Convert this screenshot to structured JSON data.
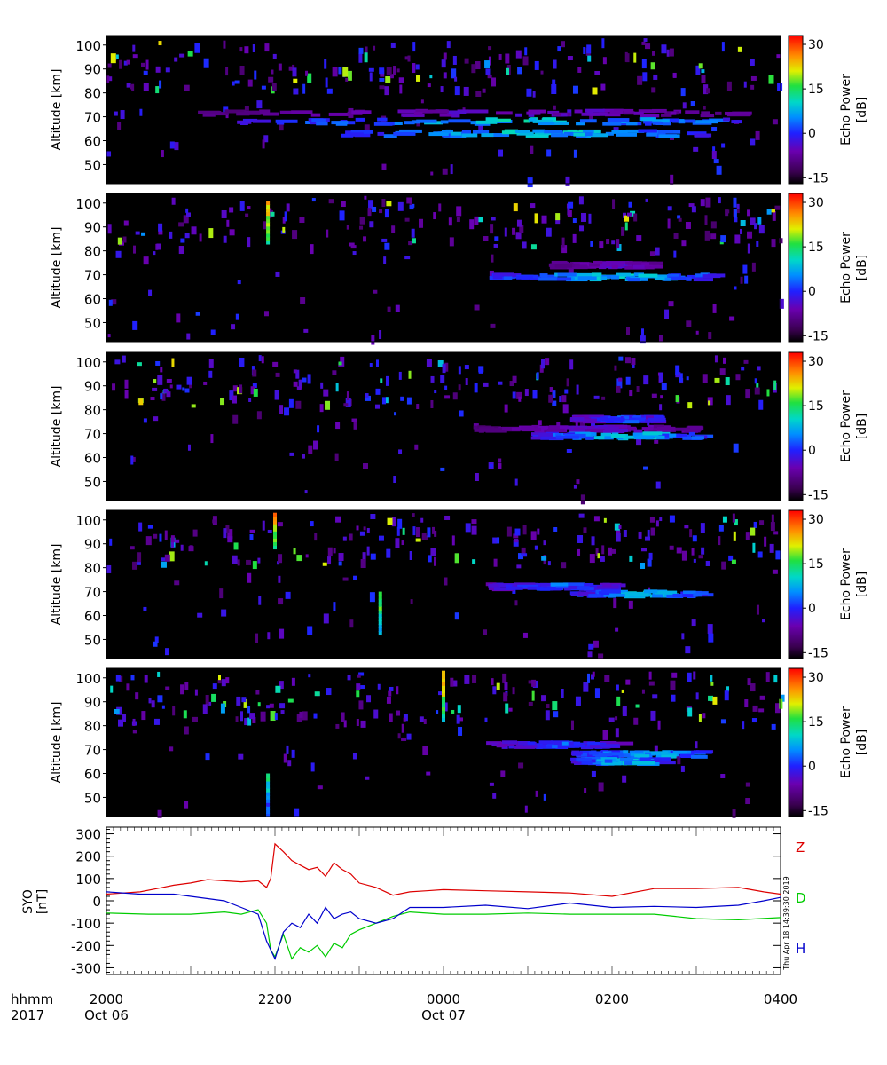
{
  "chart_data": [
    {
      "type": "heatmap",
      "panel": 1,
      "ylabel": "Altitude [km]",
      "ylim": [
        42,
        104
      ],
      "yticks": [
        50,
        60,
        70,
        80,
        90,
        100
      ],
      "xlim_hours": [
        20,
        28
      ],
      "colorbar": {
        "label": "Echo Power [dB]",
        "range": [
          -17,
          33
        ],
        "ticks": [
          30,
          15,
          0,
          -15
        ]
      },
      "features": [
        {
          "kind": "layer",
          "altitude_km": 71.5,
          "from": "2105",
          "to": "0330",
          "level": "weak"
        },
        {
          "kind": "layer",
          "altitude_km": 68,
          "from": "2130",
          "to": "0330",
          "level": "strong"
        },
        {
          "kind": "layer",
          "altitude_km": 63,
          "from": "2245",
          "to": "0300",
          "level": "strong"
        }
      ]
    },
    {
      "type": "heatmap",
      "panel": 2,
      "ylabel": "Altitude [km]",
      "ylim": [
        42,
        104
      ],
      "yticks": [
        50,
        60,
        70,
        80,
        90,
        100
      ],
      "xlim_hours": [
        20,
        28
      ],
      "colorbar": {
        "label": "Echo Power [dB]",
        "range": [
          -17,
          33
        ],
        "ticks": [
          30,
          15,
          0,
          -15
        ]
      },
      "features": [
        {
          "kind": "layer",
          "altitude_km": 74,
          "from": "0115",
          "to": "0230",
          "level": "weak"
        },
        {
          "kind": "layer",
          "altitude_km": 69,
          "from": "0030",
          "to": "0310",
          "level": "strong"
        },
        {
          "kind": "column",
          "time": "2155",
          "from_km": 83,
          "to_km": 101,
          "level": "strong"
        }
      ]
    },
    {
      "type": "heatmap",
      "panel": 3,
      "ylabel": "Altitude [km]",
      "ylim": [
        42,
        104
      ],
      "yticks": [
        50,
        60,
        70,
        80,
        90,
        100
      ],
      "xlim_hours": [
        20,
        28
      ],
      "colorbar": {
        "label": "Echo Power [dB]",
        "range": [
          -17,
          33
        ],
        "ticks": [
          30,
          15,
          0,
          -15
        ]
      },
      "features": [
        {
          "kind": "layer",
          "altitude_km": 72,
          "from": "0020",
          "to": "0300",
          "level": "weak"
        },
        {
          "kind": "layer",
          "altitude_km": 69,
          "from": "0100",
          "to": "0300",
          "level": "strong"
        },
        {
          "kind": "layer",
          "altitude_km": 76,
          "from": "0130",
          "to": "0230",
          "level": "medium"
        }
      ]
    },
    {
      "type": "heatmap",
      "panel": 4,
      "ylabel": "Altitude [km]",
      "ylim": [
        42,
        104
      ],
      "yticks": [
        50,
        60,
        70,
        80,
        90,
        100
      ],
      "xlim_hours": [
        20,
        28
      ],
      "colorbar": {
        "label": "Echo Power [dB]",
        "range": [
          -17,
          33
        ],
        "ticks": [
          30,
          15,
          0,
          -15
        ]
      },
      "features": [
        {
          "kind": "layer",
          "altitude_km": 72,
          "from": "0030",
          "to": "0200",
          "level": "medium"
        },
        {
          "kind": "layer",
          "altitude_km": 69,
          "from": "0130",
          "to": "0300",
          "level": "strong"
        },
        {
          "kind": "column",
          "time": "2200",
          "from_km": 88,
          "to_km": 102,
          "level": "strong"
        },
        {
          "kind": "column",
          "time": "2315",
          "from_km": 52,
          "to_km": 70,
          "level": "medium"
        }
      ]
    },
    {
      "type": "heatmap",
      "panel": 5,
      "ylabel": "Altitude [km]",
      "ylim": [
        42,
        104
      ],
      "yticks": [
        50,
        60,
        70,
        80,
        90,
        100
      ],
      "xlim_hours": [
        20,
        28
      ],
      "colorbar": {
        "label": "Echo Power [dB]",
        "range": [
          -17,
          33
        ],
        "ticks": [
          30,
          15,
          0,
          -15
        ]
      },
      "features": [
        {
          "kind": "layer",
          "altitude_km": 72,
          "from": "0030",
          "to": "0200",
          "level": "medium"
        },
        {
          "kind": "layer",
          "altitude_km": 68,
          "from": "0130",
          "to": "0300",
          "level": "strong"
        },
        {
          "kind": "layer",
          "altitude_km": 65,
          "from": "0130",
          "to": "0230",
          "level": "strong"
        },
        {
          "kind": "column",
          "time": "0000",
          "from_km": 82,
          "to_km": 102,
          "level": "strong"
        },
        {
          "kind": "column",
          "time": "2155",
          "from_km": 42,
          "to_km": 60,
          "level": "weak"
        }
      ]
    },
    {
      "type": "line",
      "panel": 6,
      "ylabel": "SYO\n[nT]",
      "ylim": [
        -330,
        330
      ],
      "yticks": [
        300,
        200,
        100,
        0,
        -100,
        -200,
        -300
      ],
      "xlim_hours": [
        20,
        28
      ],
      "series": [
        {
          "name": "Z",
          "color": "#dd0000",
          "x": [
            20.0,
            20.2,
            20.4,
            20.6,
            20.8,
            21.0,
            21.2,
            21.4,
            21.6,
            21.8,
            21.9,
            21.95,
            22.0,
            22.1,
            22.2,
            22.3,
            22.4,
            22.5,
            22.6,
            22.7,
            22.8,
            22.9,
            23.0,
            23.2,
            23.4,
            23.6,
            23.8,
            24.0,
            24.5,
            25.0,
            25.5,
            26.0,
            26.5,
            27.0,
            27.5,
            27.8,
            28.0
          ],
          "y": [
            30,
            35,
            40,
            55,
            70,
            80,
            95,
            90,
            85,
            90,
            60,
            100,
            255,
            220,
            180,
            160,
            140,
            150,
            110,
            170,
            140,
            120,
            80,
            60,
            25,
            40,
            45,
            50,
            45,
            40,
            35,
            20,
            55,
            55,
            60,
            40,
            30
          ]
        },
        {
          "name": "D",
          "color": "#00cc00",
          "x": [
            20.0,
            20.5,
            21.0,
            21.4,
            21.6,
            21.8,
            21.9,
            21.95,
            22.0,
            22.1,
            22.2,
            22.3,
            22.4,
            22.5,
            22.6,
            22.7,
            22.8,
            22.9,
            23.0,
            23.2,
            23.4,
            23.6,
            24.0,
            24.5,
            25.0,
            25.5,
            26.0,
            26.5,
            27.0,
            27.5,
            28.0
          ],
          "y": [
            -55,
            -60,
            -60,
            -50,
            -60,
            -40,
            -100,
            -220,
            -250,
            -150,
            -260,
            -210,
            -230,
            -200,
            -250,
            -190,
            -210,
            -150,
            -130,
            -100,
            -70,
            -50,
            -60,
            -60,
            -55,
            -60,
            -60,
            -60,
            -80,
            -85,
            -75
          ]
        },
        {
          "name": "H",
          "color": "#0000cc",
          "x": [
            20.0,
            20.4,
            20.8,
            21.0,
            21.4,
            21.6,
            21.8,
            21.9,
            22.0,
            22.1,
            22.2,
            22.3,
            22.4,
            22.5,
            22.6,
            22.7,
            22.8,
            22.9,
            23.0,
            23.2,
            23.4,
            23.6,
            24.0,
            24.5,
            25.0,
            25.5,
            26.0,
            26.5,
            27.0,
            27.5,
            27.8,
            28.0
          ],
          "y": [
            40,
            30,
            30,
            20,
            0,
            -30,
            -60,
            -180,
            -260,
            -140,
            -100,
            -120,
            -60,
            -100,
            -30,
            -80,
            -60,
            -50,
            -80,
            -100,
            -80,
            -30,
            -30,
            -20,
            -35,
            -10,
            -30,
            -25,
            -30,
            -20,
            0,
            15
          ]
        }
      ]
    }
  ],
  "x_axis": {
    "row_label": "hhmm",
    "year": "2017",
    "ticks": [
      {
        "hour": 20,
        "label": "2000",
        "date": "Oct 06"
      },
      {
        "hour": 22,
        "label": "2200",
        "date": ""
      },
      {
        "hour": 24,
        "label": "0000",
        "date": "Oct 07"
      },
      {
        "hour": 26,
        "label": "0200",
        "date": ""
      },
      {
        "hour": 28,
        "label": "0400",
        "date": ""
      }
    ]
  },
  "timestamp": "Thu Apr 18 14:39:30 2019",
  "colors": {
    "background": "#ffffff",
    "heatmap_background": "#000000",
    "frame": "#000000"
  }
}
